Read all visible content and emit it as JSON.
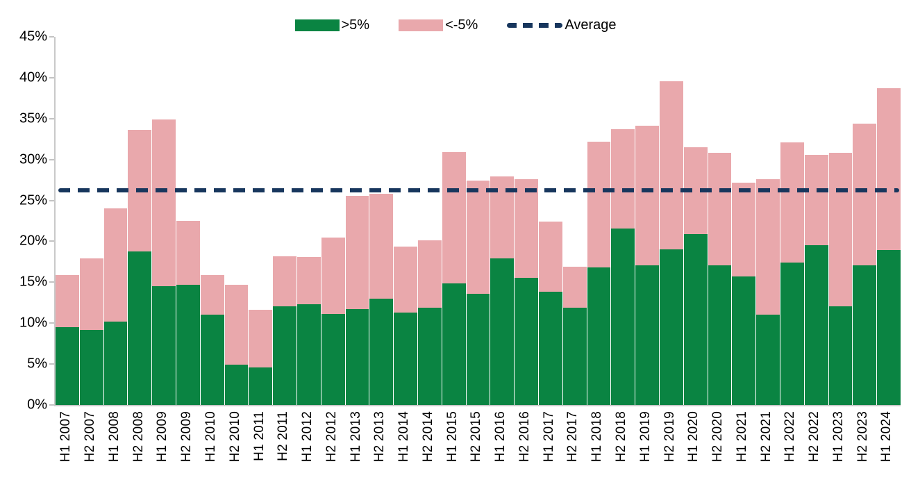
{
  "legend": {
    "items": [
      {
        "label": ">5%",
        "type": "box",
        "color": "#0A8442"
      },
      {
        "label": "<-5%",
        "type": "box",
        "color": "#E9A8AC"
      },
      {
        "label": "Average",
        "type": "dash",
        "color": "#17365D"
      }
    ]
  },
  "chart_data": {
    "type": "bar",
    "stacked": true,
    "title": "",
    "xlabel": "",
    "ylabel": "",
    "ylim": [
      0,
      45
    ],
    "ytick_step": 5,
    "ytick_labels": [
      "0%",
      "5%",
      "10%",
      "15%",
      "20%",
      "25%",
      "30%",
      "35%",
      "40%",
      "45%"
    ],
    "grid": false,
    "legend_position": "top",
    "categories": [
      "H1 2007",
      "H2 2007",
      "H1 2008",
      "H2 2008",
      "H1 2009",
      "H2 2009",
      "H1 2010",
      "H2 2010",
      "H1 2011",
      "H2 2011",
      "H1 2012",
      "H2 2012",
      "H1 2013",
      "H2 2013",
      "H1 2014",
      "H2 2014",
      "H1 2015",
      "H2 2015",
      "H1 2016",
      "H2 2016",
      "H1 2017",
      "H2 2017",
      "H1 2018",
      "H2 2018",
      "H1 2019",
      "H2 2019",
      "H1 2020",
      "H2 2020",
      "H1 2021",
      "H2 2021",
      "H1 2022",
      "H2 2022",
      "H1 2023",
      "H2 2023",
      "H1 2024"
    ],
    "series": [
      {
        "name": ">5%",
        "color": "#0A8442",
        "values": [
          9.5,
          9.2,
          10.2,
          18.8,
          14.5,
          14.7,
          11.0,
          4.9,
          4.6,
          12.1,
          12.3,
          11.1,
          11.7,
          13.0,
          11.3,
          11.9,
          14.9,
          13.6,
          17.9,
          15.5,
          13.8,
          11.9,
          16.8,
          21.6,
          17.1,
          19.0,
          20.9,
          17.1,
          15.7,
          11.0,
          17.4,
          19.5,
          12.1,
          17.1,
          18.9
        ]
      },
      {
        "name": "<-5%",
        "color": "#E9A8AC",
        "values": [
          6.4,
          8.7,
          13.8,
          14.8,
          20.4,
          7.8,
          4.9,
          9.8,
          7.0,
          6.1,
          5.8,
          9.4,
          13.9,
          12.8,
          8.1,
          8.2,
          16.0,
          13.8,
          10.0,
          12.1,
          8.6,
          5.0,
          15.4,
          12.1,
          17.0,
          20.6,
          10.6,
          13.7,
          11.5,
          16.6,
          14.7,
          11.1,
          18.7,
          17.3,
          19.8
        ]
      }
    ],
    "totals": [
      15.9,
      17.9,
      24.0,
      33.6,
      34.9,
      22.5,
      15.9,
      14.7,
      11.6,
      18.2,
      18.1,
      20.5,
      25.6,
      25.8,
      19.4,
      20.1,
      30.9,
      27.4,
      27.9,
      27.6,
      22.4,
      16.9,
      32.2,
      33.7,
      34.1,
      39.6,
      31.5,
      30.8,
      27.2,
      27.6,
      32.1,
      30.6,
      30.8,
      34.4,
      38.7
    ],
    "average_line": {
      "label": "Average",
      "value": 26.2,
      "color": "#17365D",
      "style": "dashed"
    }
  }
}
